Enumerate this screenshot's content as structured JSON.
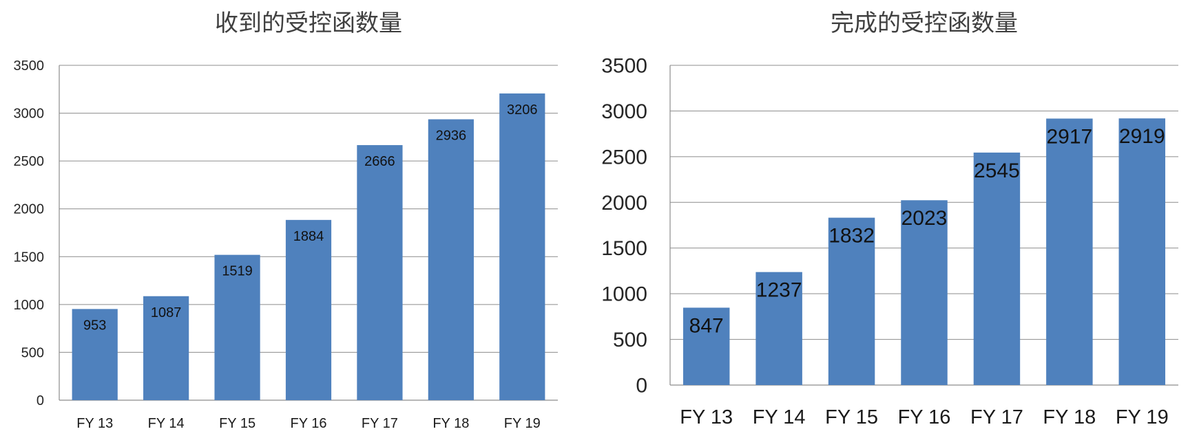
{
  "chart_data": [
    {
      "type": "bar",
      "title": "收到的受控函数量",
      "categories": [
        "FY 13",
        "FY 14",
        "FY 15",
        "FY 16",
        "FY 17",
        "FY 18",
        "FY 19"
      ],
      "values": [
        953,
        1087,
        1519,
        1884,
        2666,
        2936,
        3206
      ],
      "ylim": [
        0,
        3500
      ],
      "yticks": [
        0,
        500,
        1000,
        1500,
        2000,
        2500,
        3000,
        3500
      ],
      "grid": true,
      "legend": "none",
      "bar_color": "#4f81bd"
    },
    {
      "type": "bar",
      "title": "完成的受控函数量",
      "categories": [
        "FY 13",
        "FY 14",
        "FY 15",
        "FY 16",
        "FY 17",
        "FY 18",
        "FY 19"
      ],
      "values": [
        847,
        1237,
        1832,
        2023,
        2545,
        2917,
        2919
      ],
      "ylim": [
        0,
        3500
      ],
      "yticks": [
        0,
        500,
        1000,
        1500,
        2000,
        2500,
        3000,
        3500
      ],
      "grid": true,
      "legend": "none",
      "bar_color": "#4f81bd"
    }
  ]
}
